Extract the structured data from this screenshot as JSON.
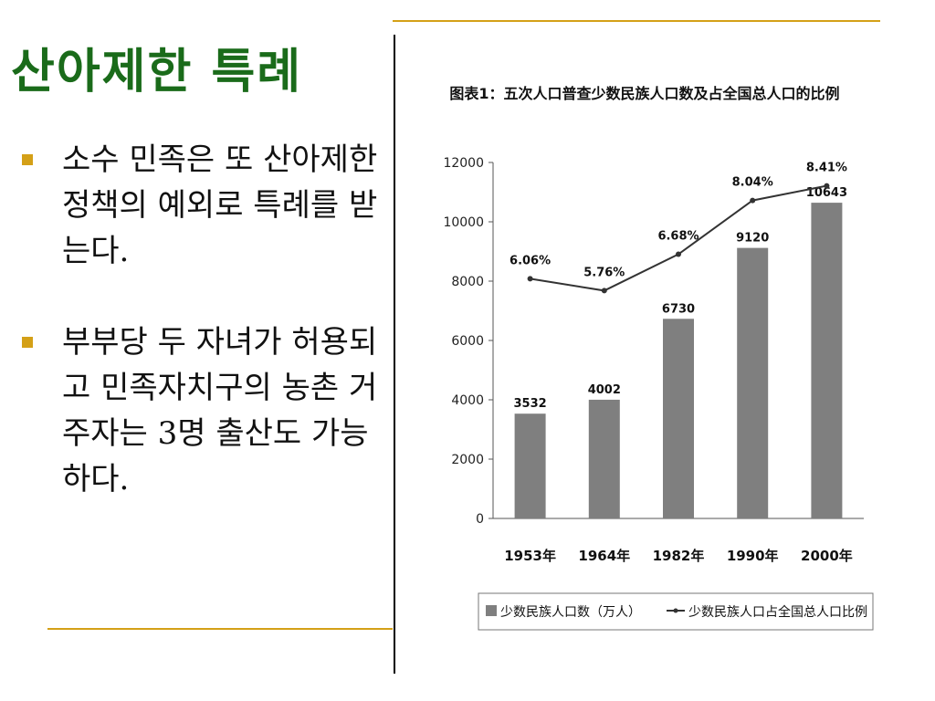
{
  "slide": {
    "title": "산아제한 특례",
    "bullets": [
      "소수 민족은 또 산아제한 정책의 예외로 특례를 받는다.",
      "부부당 두 자녀가 허용되고 민족자치구의 농촌 거주자는 3명 출산도 가능하다."
    ],
    "accent_color": "#d4a017",
    "title_color": "#1a6b1a"
  },
  "chart_data": {
    "type": "bar",
    "title": "图表1：五次人口普查少数民族人口数及占全国总人口的比例",
    "categories": [
      "1953年",
      "1964年",
      "1982年",
      "1990年",
      "2000年"
    ],
    "ylim": [
      0,
      12000
    ],
    "yticks": [
      0,
      2000,
      4000,
      6000,
      8000,
      10000,
      12000
    ],
    "series": [
      {
        "name": "少数民族人口数（万人）",
        "type": "bar",
        "values": [
          3532,
          4002,
          6730,
          9120,
          10643
        ],
        "labels": [
          "3532",
          "4002",
          "6730",
          "9120",
          "10643"
        ],
        "color": "#7f7f7f"
      },
      {
        "name": "少数民族人口占全国总人口比例",
        "type": "line",
        "values": [
          6.06,
          5.76,
          6.68,
          8.04,
          8.41
        ],
        "labels": [
          "6.06%",
          "5.76%",
          "6.68%",
          "8.04%",
          "8.41%"
        ],
        "color": "#333333"
      }
    ],
    "legend_position": "bottom",
    "grid": false
  }
}
